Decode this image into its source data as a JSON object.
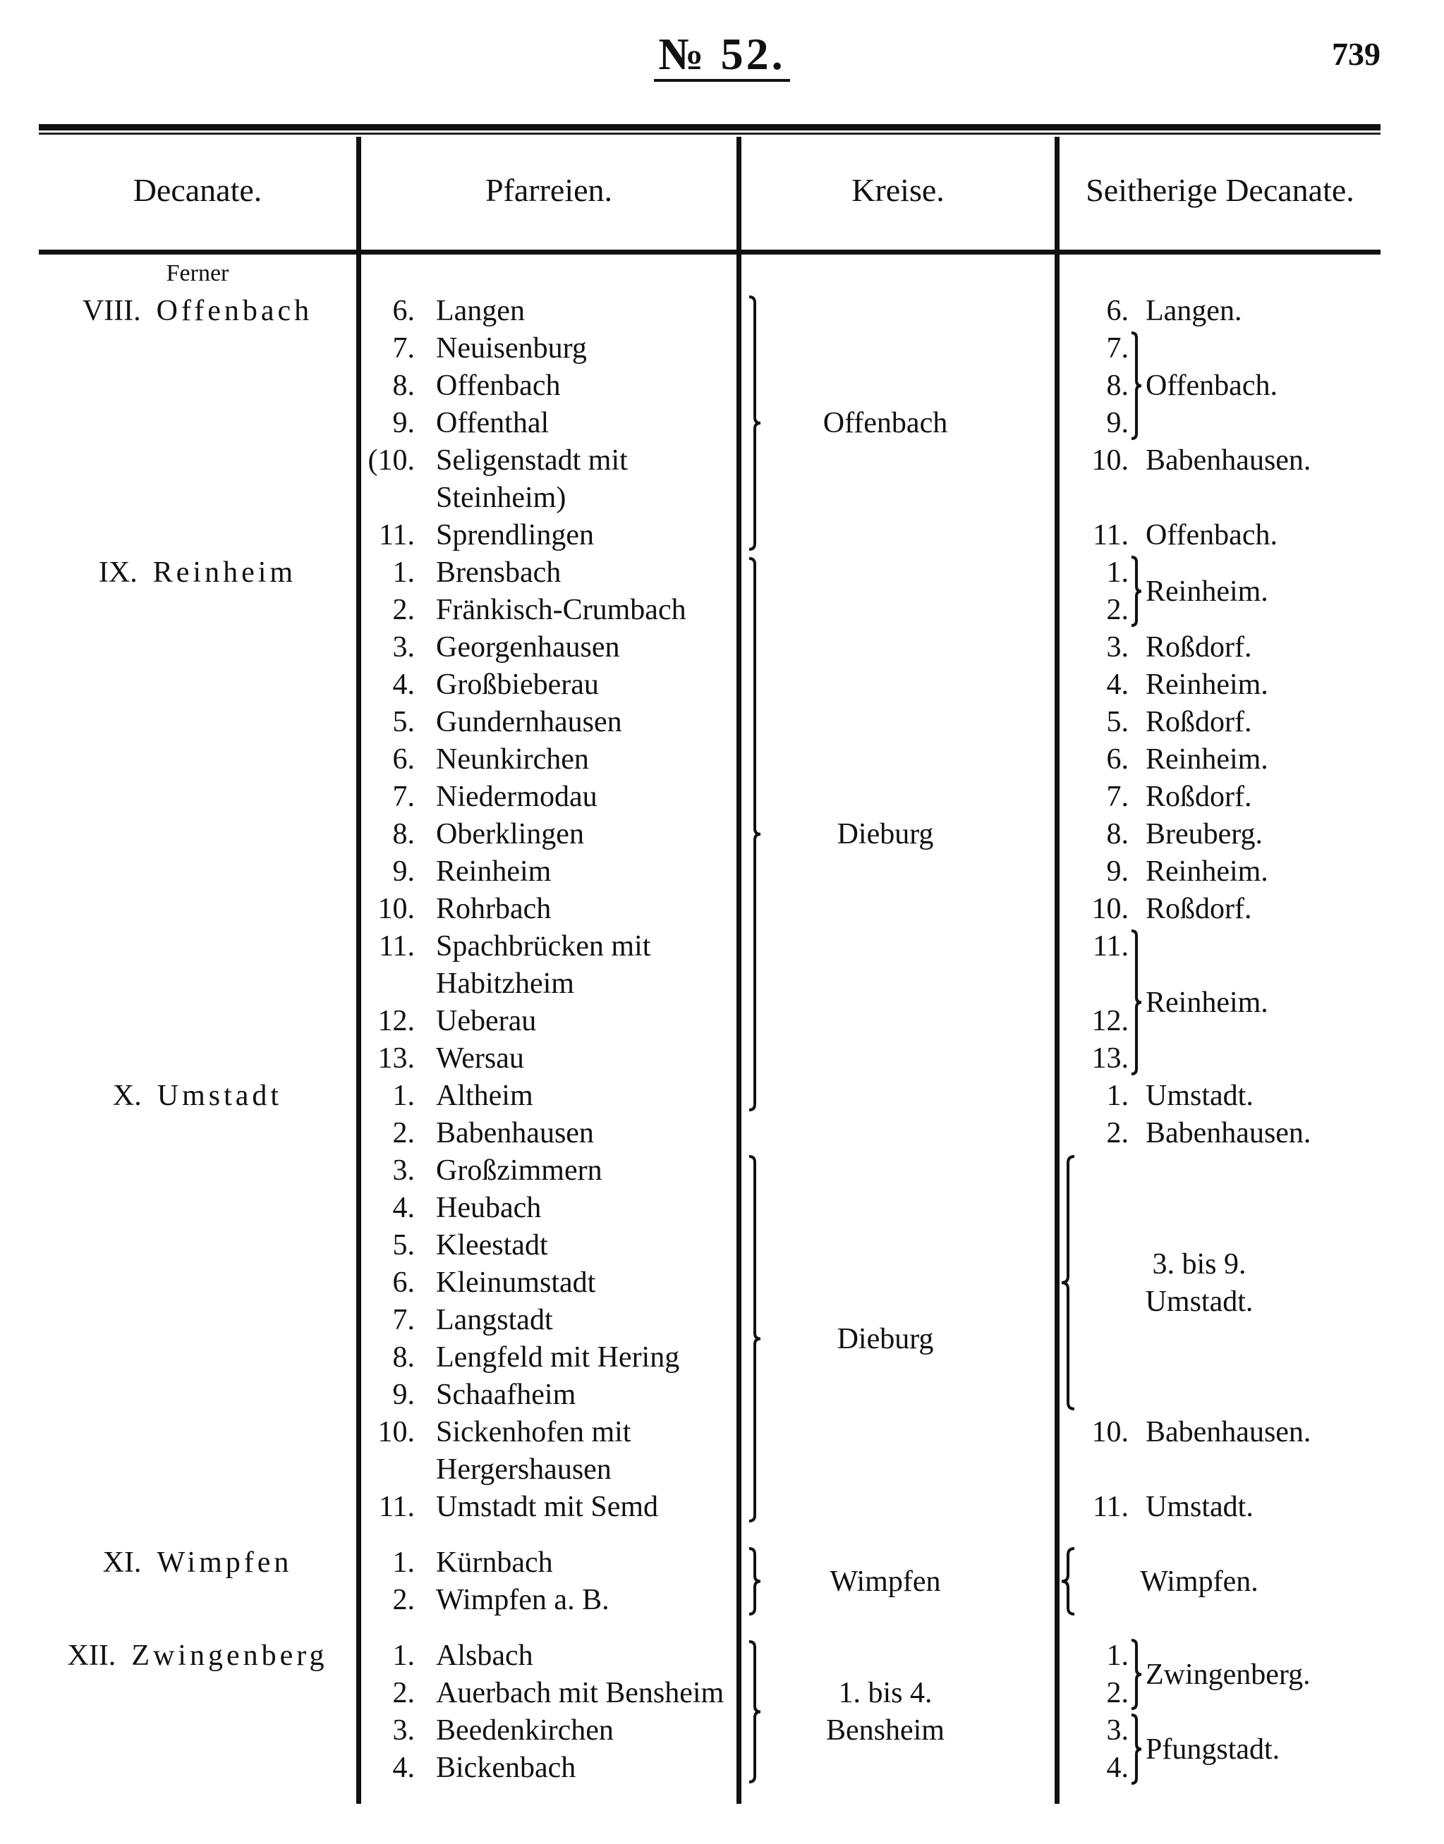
{
  "header": {
    "title": "№ 52.",
    "page_number": "739"
  },
  "columns": [
    "Decanate.",
    "Pfarreien.",
    "Kreise.",
    "Seitherige Decanate."
  ],
  "groups": [
    {
      "prefix": "Ferner",
      "numeral": "VIII.",
      "name": "Offenbach",
      "parishes": [
        {
          "num": "6.",
          "lines": [
            "Langen"
          ]
        },
        {
          "num": "7.",
          "lines": [
            "Neuisenburg"
          ]
        },
        {
          "num": "8.",
          "lines": [
            "Offenbach"
          ]
        },
        {
          "num": "9.",
          "lines": [
            "Offenthal"
          ]
        },
        {
          "num": "(10.",
          "lines": [
            "Seligenstadt mit",
            "Steinheim)"
          ]
        },
        {
          "num": "11.",
          "lines": [
            "Sprendlingen"
          ]
        }
      ],
      "former": [
        {
          "nums": [
            "6."
          ],
          "label": "Langen."
        },
        {
          "nums": [
            "7.",
            "8.",
            "9."
          ],
          "label": "Offenbach.",
          "brace": true
        },
        {
          "nums": [
            "10."
          ],
          "label": "Babenhausen."
        },
        {
          "nums": [
            "11."
          ],
          "label": "Offenbach."
        }
      ]
    },
    {
      "numeral": "IX.",
      "name": "Reinheim",
      "parishes": [
        {
          "num": "1.",
          "lines": [
            "Brensbach"
          ]
        },
        {
          "num": "2.",
          "lines": [
            "Fränkisch-Crumbach"
          ]
        },
        {
          "num": "3.",
          "lines": [
            "Georgenhausen"
          ]
        },
        {
          "num": "4.",
          "lines": [
            "Großbieberau"
          ]
        },
        {
          "num": "5.",
          "lines": [
            "Gundernhausen"
          ]
        },
        {
          "num": "6.",
          "lines": [
            "Neunkirchen"
          ]
        },
        {
          "num": "7.",
          "lines": [
            "Niedermodau"
          ]
        },
        {
          "num": "8.",
          "lines": [
            "Oberklingen"
          ]
        },
        {
          "num": "9.",
          "lines": [
            "Reinheim"
          ]
        },
        {
          "num": "10.",
          "lines": [
            "Rohrbach"
          ]
        },
        {
          "num": "11.",
          "lines": [
            "Spachbrücken mit",
            "Habitzheim"
          ]
        },
        {
          "num": "12.",
          "lines": [
            "Ueberau"
          ]
        },
        {
          "num": "13.",
          "lines": [
            "Wersau"
          ]
        }
      ],
      "former": [
        {
          "nums": [
            "1.",
            "2."
          ],
          "label": "Reinheim.",
          "brace": true
        },
        {
          "nums": [
            "3."
          ],
          "label": "Roßdorf."
        },
        {
          "nums": [
            "4."
          ],
          "label": "Reinheim."
        },
        {
          "nums": [
            "5."
          ],
          "label": "Roßdorf."
        },
        {
          "nums": [
            "6."
          ],
          "label": "Reinheim."
        },
        {
          "nums": [
            "7."
          ],
          "label": "Roßdorf."
        },
        {
          "nums": [
            "8."
          ],
          "label": "Breuberg."
        },
        {
          "nums": [
            "9."
          ],
          "label": "Reinheim."
        },
        {
          "nums": [
            "10."
          ],
          "label": "Roßdorf."
        },
        {
          "nums": [
            "11.",
            "12.",
            "13."
          ],
          "label": "Reinheim.",
          "brace": true
        }
      ]
    },
    {
      "numeral": "X.",
      "name": "Umstadt",
      "parishes": [
        {
          "num": "1.",
          "lines": [
            "Altheim"
          ]
        },
        {
          "num": "2.",
          "lines": [
            "Babenhausen"
          ]
        },
        {
          "num": "3.",
          "lines": [
            "Großzimmern"
          ]
        },
        {
          "num": "4.",
          "lines": [
            "Heubach"
          ]
        },
        {
          "num": "5.",
          "lines": [
            "Kleestadt"
          ]
        },
        {
          "num": "6.",
          "lines": [
            "Kleinumstadt"
          ]
        },
        {
          "num": "7.",
          "lines": [
            "Langstadt"
          ]
        },
        {
          "num": "8.",
          "lines": [
            "Lengfeld mit Hering"
          ]
        },
        {
          "num": "9.",
          "lines": [
            "Schaafheim"
          ]
        },
        {
          "num": "10.",
          "lines": [
            "Sickenhofen mit",
            "Hergershausen"
          ]
        },
        {
          "num": "11.",
          "lines": [
            "Umstadt mit Semd"
          ]
        }
      ],
      "former": [
        {
          "nums": [
            "1."
          ],
          "label": "Umstadt."
        },
        {
          "nums": [
            "2."
          ],
          "label": "Babenhausen."
        },
        {
          "range": [
            "3.",
            "9."
          ],
          "label_lines": [
            "3. bis 9.",
            "Umstadt."
          ]
        },
        {
          "nums": [
            "10."
          ],
          "label": "Babenhausen."
        },
        {
          "nums": [
            "11."
          ],
          "label": "Umstadt."
        }
      ]
    },
    {
      "numeral": "XI.",
      "name": "Wimpfen",
      "parishes": [
        {
          "num": "1.",
          "lines": [
            "Kürnbach"
          ]
        },
        {
          "num": "2.",
          "lines": [
            "Wimpfen a. B."
          ]
        }
      ],
      "former": [
        {
          "range": [
            "1.",
            "2."
          ],
          "label_lines": [
            "Wimpfen."
          ]
        }
      ]
    },
    {
      "numeral": "XII.",
      "name": "Zwingenberg",
      "parishes": [
        {
          "num": "1.",
          "lines": [
            "Alsbach"
          ]
        },
        {
          "num": "2.",
          "lines": [
            "Auerbach mit Bensheim"
          ]
        },
        {
          "num": "3.",
          "lines": [
            "Beedenkirchen"
          ]
        },
        {
          "num": "4.",
          "lines": [
            "Bickenbach"
          ]
        }
      ],
      "former": [
        {
          "nums": [
            "1.",
            "2."
          ],
          "label": "Zwingenberg.",
          "brace": true
        },
        {
          "nums": [
            "3.",
            "4."
          ],
          "label": "Pfungstadt.",
          "brace": true
        }
      ]
    }
  ],
  "kreise": [
    {
      "label_lines": [
        "Offenbach"
      ],
      "from": [
        "VIII.",
        "6."
      ],
      "to": [
        "VIII.",
        "11."
      ]
    },
    {
      "label_lines": [
        "Dieburg"
      ],
      "from": [
        "IX.",
        "1."
      ],
      "to": [
        "X.",
        "1."
      ]
    },
    {
      "label_lines": [
        "Dieburg"
      ],
      "from": [
        "X.",
        "3."
      ],
      "to": [
        "X.",
        "11."
      ]
    },
    {
      "label_lines": [
        "Wimpfen"
      ],
      "from": [
        "XI.",
        "1."
      ],
      "to": [
        "XI.",
        "2."
      ]
    },
    {
      "label_lines": [
        "1. bis 4.",
        "Bensheim"
      ],
      "from": [
        "XII.",
        "1."
      ],
      "to": [
        "XII.",
        "4."
      ]
    }
  ]
}
